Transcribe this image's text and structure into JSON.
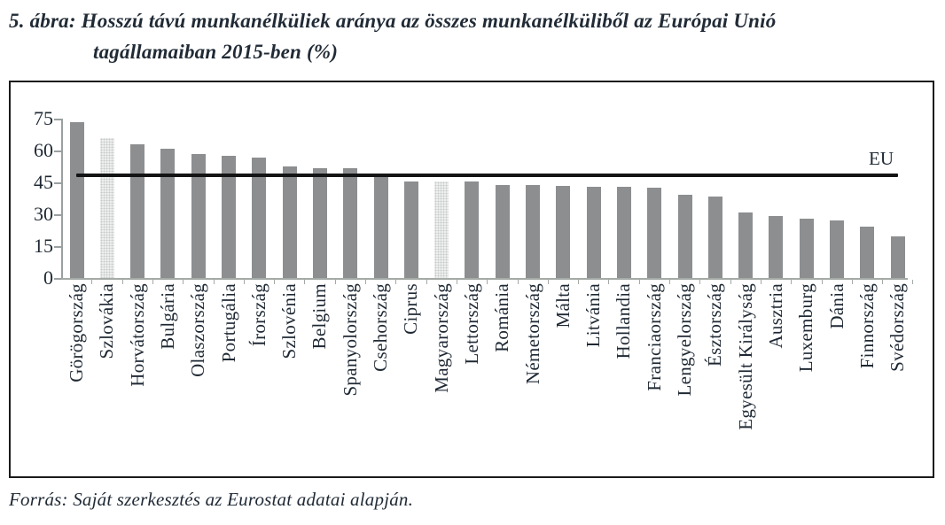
{
  "figure": {
    "title_line1": "5. ábra: Hosszú távú munkanélküliek aránya az összes munkanélküliből az Európai Unió",
    "title_line2": "tagállamaiban 2015-ben (%)",
    "source": "Forrás: Saját szerkesztés az Eurostat adatai alapján."
  },
  "chart_data": {
    "type": "bar",
    "title": "Hosszú távú munkanélküliek aránya az összes munkanélküliből az Európai Unió tagállamaiban 2015-ben (%)",
    "categories": [
      "Görögország",
      "Szlovákia",
      "Horvátország",
      "Bulgária",
      "Olaszország",
      "Portugália",
      "Írország",
      "Szlovénia",
      "Belgium",
      "Spanyolország",
      "Csehország",
      "Ciprus",
      "Magyarország",
      "Lettország",
      "Románia",
      "Németország",
      "Málta",
      "Litvánia",
      "Hollandia",
      "Franciaország",
      "Lengyelország",
      "Észtország",
      "Egyesült Királyság",
      "Ausztria",
      "Luxemburg",
      "Dánia",
      "Finnország",
      "Svédország"
    ],
    "values": [
      73.5,
      66.0,
      63.0,
      61.0,
      58.5,
      57.3,
      56.5,
      52.3,
      51.8,
      51.5,
      47.5,
      45.6,
      45.5,
      45.3,
      43.9,
      43.6,
      43.4,
      43.1,
      43.0,
      42.6,
      39.3,
      38.3,
      30.7,
      29.2,
      28.0,
      26.9,
      24.3,
      19.7
    ],
    "highlighted_categories": [
      "Szlovákia",
      "Magyarország"
    ],
    "reference_line": {
      "label": "EU",
      "value": 48.3
    },
    "xlabel": "",
    "ylabel": "",
    "ylim": [
      0,
      75
    ],
    "yticks": [
      0,
      15,
      30,
      45,
      60,
      75
    ],
    "grid": false,
    "legend_position": "none",
    "bar_color": "#a0a2a3",
    "highlight_bar_color": "#edefee",
    "reference_line_color": "#141414",
    "source": "Forrás: Saját szerkesztés az Eurostat adatai alapján."
  }
}
